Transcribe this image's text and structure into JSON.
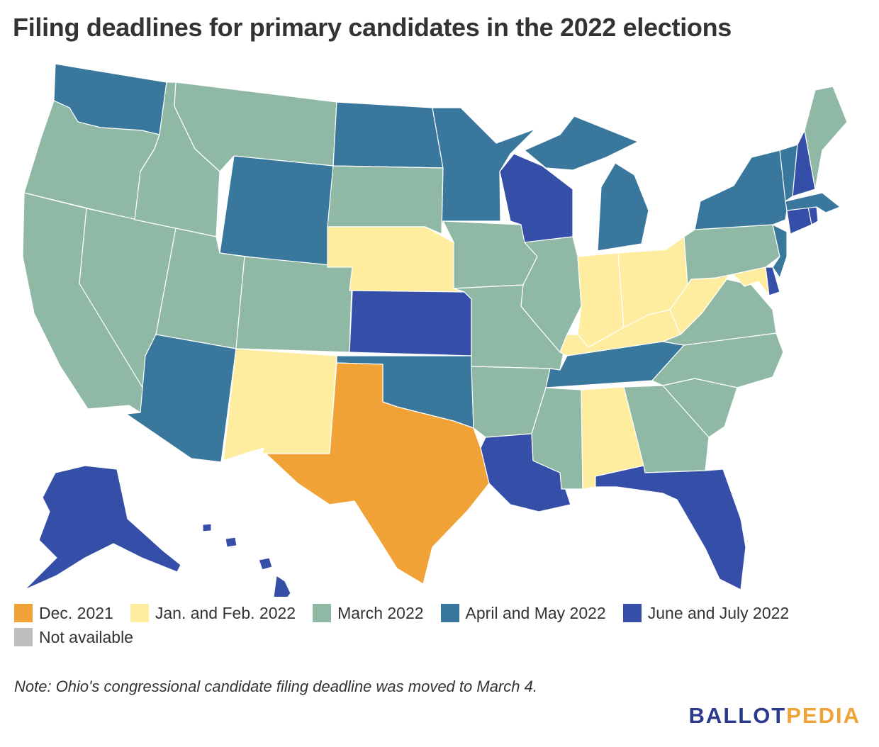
{
  "title": "Filing deadlines for primary candidates in the 2022 elections",
  "colors": {
    "dec2021": "#f0a236",
    "janfeb2022": "#feec9f",
    "march2022": "#8fb9a5",
    "aprmay2022": "#3a779d",
    "junjul2022": "#354fa8",
    "na": "#bdbdbd"
  },
  "legend": [
    {
      "key": "dec2021",
      "label": "Dec. 2021"
    },
    {
      "key": "janfeb2022",
      "label": "Jan. and Feb. 2022"
    },
    {
      "key": "march2022",
      "label": "March 2022"
    },
    {
      "key": "aprmay2022",
      "label": "April and May 2022"
    },
    {
      "key": "junjul2022",
      "label": "June and July 2022"
    },
    {
      "key": "na",
      "label": "Not available"
    }
  ],
  "states": {
    "WA": "aprmay2022",
    "OR": "march2022",
    "CA": "march2022",
    "NV": "march2022",
    "ID": "march2022",
    "MT": "march2022",
    "WY": "aprmay2022",
    "UT": "march2022",
    "AZ": "aprmay2022",
    "CO": "march2022",
    "NM": "janfeb2022",
    "ND": "aprmay2022",
    "SD": "march2022",
    "NE": "janfeb2022",
    "KS": "junjul2022",
    "OK": "aprmay2022",
    "TX": "dec2021",
    "MN": "aprmay2022",
    "IA": "march2022",
    "MO": "march2022",
    "AR": "march2022",
    "LA": "junjul2022",
    "WI": "junjul2022",
    "IL": "march2022",
    "MI": "aprmay2022",
    "IN": "janfeb2022",
    "OH": "janfeb2022",
    "KY": "janfeb2022",
    "TN": "aprmay2022",
    "MS": "march2022",
    "AL": "janfeb2022",
    "GA": "march2022",
    "FL": "junjul2022",
    "SC": "march2022",
    "NC": "march2022",
    "VA": "march2022",
    "WV": "janfeb2022",
    "MD": "janfeb2022",
    "DE": "junjul2022",
    "NJ": "aprmay2022",
    "PA": "march2022",
    "NY": "aprmay2022",
    "CT": "junjul2022",
    "RI": "junjul2022",
    "MA": "aprmay2022",
    "VT": "aprmay2022",
    "NH": "junjul2022",
    "ME": "march2022",
    "AK": "junjul2022",
    "HI": "junjul2022"
  },
  "note": "Note: Ohio's congressional candidate filing deadline was moved to March 4.",
  "logo": {
    "part1": "BALLOT",
    "part2": "PEDIA"
  }
}
